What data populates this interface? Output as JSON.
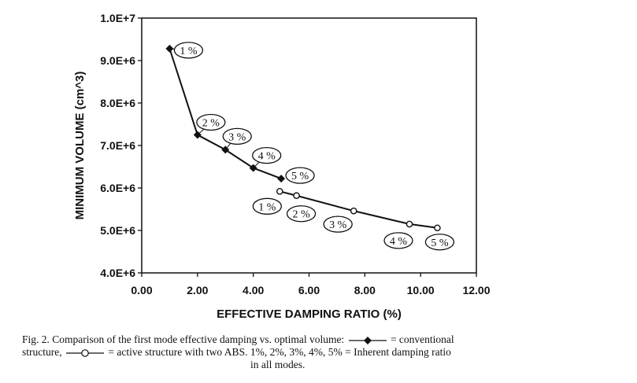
{
  "chart_data": {
    "type": "line",
    "title": "",
    "xlabel": "EFFECTIVE DAMPING RATIO (%)",
    "ylabel": "MINIMUM VOLUME (cm^3)",
    "xlim": [
      0,
      12
    ],
    "ylim": [
      4000000,
      10000000
    ],
    "x_ticks": [
      0,
      2,
      4,
      6,
      8,
      10,
      12
    ],
    "x_tick_labels": [
      "0.00",
      "2.00",
      "4.00",
      "6.00",
      "8.00",
      "10.00",
      "12.00"
    ],
    "y_ticks": [
      4000000,
      5000000,
      6000000,
      7000000,
      8000000,
      9000000,
      10000000
    ],
    "y_tick_labels": [
      "4.0E+6",
      "5.0E+6",
      "6.0E+6",
      "7.0E+6",
      "8.0E+6",
      "9.0E+6",
      "1.0E+7"
    ],
    "grid": false,
    "series": [
      {
        "marker": "diamond-filled",
        "color": "#111111",
        "x": [
          1.0,
          2.0,
          3.0,
          4.0,
          5.0
        ],
        "y": [
          9280000,
          7250000,
          6900000,
          6470000,
          6220000
        ],
        "labels": [
          "1 %",
          "2 %",
          "3 %",
          "4 %",
          "5 %"
        ]
      },
      {
        "marker": "circle-open",
        "color": "#111111",
        "x": [
          4.95,
          5.55,
          7.6,
          9.6,
          10.6
        ],
        "y": [
          5920000,
          5820000,
          5460000,
          5150000,
          5060000
        ],
        "labels": [
          "1 %",
          "2 %",
          "3 %",
          "4 %",
          "5 %"
        ]
      }
    ]
  },
  "caption": {
    "line1_start": "Fig. 2. Comparison of the first mode effective damping vs. optimal volume:",
    "line1_end": "= conventional",
    "line2_start": "structure,",
    "line2_end": "= active structure with two ABS. 1%, 2%, 3%, 4%, 5% = Inherent damping ratio",
    "line3": "in all modes."
  }
}
